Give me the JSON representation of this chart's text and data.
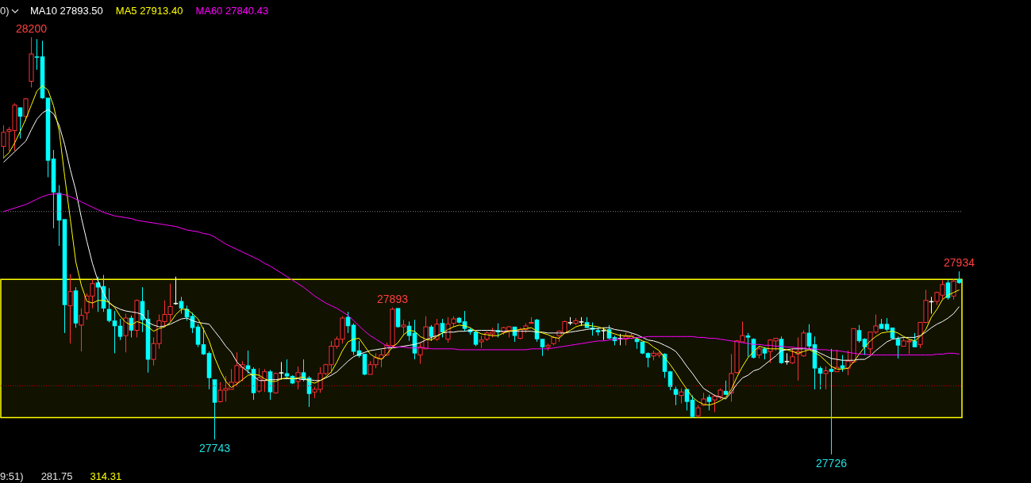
{
  "chart_data": {
    "type": "candlestick",
    "tick_labels": false,
    "legend": "top left",
    "marker": "none",
    "categories": [
      null,
      null,
      null,
      null,
      null,
      null,
      null,
      null,
      null,
      null,
      null,
      null,
      null,
      null,
      null,
      null,
      null,
      null,
      null,
      null,
      null,
      null,
      null,
      null,
      null,
      null,
      null,
      null,
      null,
      null,
      null,
      null,
      null,
      null,
      null,
      null,
      null,
      null,
      null,
      null,
      null,
      null,
      null,
      null,
      null,
      null,
      null,
      null,
      null,
      null,
      null,
      null,
      null,
      null,
      null,
      null,
      null,
      null,
      null,
      null,
      null,
      null,
      null,
      null,
      null,
      null,
      null,
      null,
      null,
      null,
      null,
      null,
      null,
      null,
      null,
      null,
      null,
      null,
      null,
      null,
      null,
      null,
      null,
      null,
      null,
      null,
      null,
      null,
      null,
      null,
      null,
      null,
      null,
      null,
      null,
      null,
      null,
      null,
      null,
      null,
      null,
      null,
      null,
      null,
      null,
      null,
      null,
      null,
      null,
      null,
      null,
      null,
      null,
      null,
      null,
      null,
      null,
      null,
      null,
      null,
      null,
      null,
      null,
      null,
      null,
      null,
      null,
      null,
      null,
      null,
      null,
      null,
      null,
      null,
      null,
      null,
      null,
      null,
      null,
      null,
      null,
      null,
      null,
      null,
      null,
      null,
      null,
      null,
      null,
      null,
      null,
      null,
      null,
      null,
      null,
      null,
      null,
      null,
      null,
      null,
      null,
      null,
      null,
      null,
      null,
      null,
      null,
      null,
      null,
      null,
      null,
      null,
      null
    ],
    "ohlc": [
      [
        28076,
        28100,
        28062,
        28092
      ],
      [
        28093,
        28098,
        28071,
        28095
      ],
      [
        28094,
        28125,
        28071,
        28123
      ],
      [
        28120,
        28120,
        28085,
        28110
      ],
      [
        28110,
        28131,
        28105,
        28130
      ],
      [
        28150,
        28200,
        28143,
        28181
      ],
      [
        28178,
        28198,
        28163,
        28177
      ],
      [
        28178,
        28196,
        28130,
        28131
      ],
      [
        28131,
        28131,
        28041,
        28060
      ],
      [
        28062,
        28072,
        27983,
        28024
      ],
      [
        28023,
        28032,
        27963,
        27992
      ],
      [
        27993,
        27993,
        27864,
        27896
      ],
      [
        27895,
        27931,
        27852,
        27911
      ],
      [
        27912,
        27916,
        27870,
        27875
      ],
      [
        27873,
        27892,
        27843,
        27884
      ],
      [
        27887,
        27909,
        27879,
        27906
      ],
      [
        27906,
        27925,
        27892,
        27920
      ],
      [
        27921,
        27928,
        27888,
        27916
      ],
      [
        27917,
        27930,
        27888,
        27892
      ],
      [
        27891,
        27915,
        27876,
        27878
      ],
      [
        27878,
        27889,
        27841,
        27872
      ],
      [
        27872,
        27880,
        27856,
        27860
      ],
      [
        27861,
        27886,
        27842,
        27881
      ],
      [
        27881,
        27884,
        27859,
        27867
      ],
      [
        27867,
        27902,
        27859,
        27901
      ],
      [
        27900,
        27916,
        27865,
        27879
      ],
      [
        27880,
        27890,
        27819,
        27834
      ],
      [
        27834,
        27859,
        27827,
        27852
      ],
      [
        27852,
        27885,
        27846,
        27878
      ],
      [
        27877,
        27901,
        27871,
        27885
      ],
      [
        27885,
        27920,
        27877,
        27894
      ],
      [
        27898,
        27928,
        27896,
        27898
      ],
      [
        27900,
        27905,
        27886,
        27892
      ],
      [
        27891,
        27895,
        27878,
        27882
      ],
      [
        27883,
        27887,
        27864,
        27870
      ],
      [
        27871,
        27874,
        27848,
        27851
      ],
      [
        27851,
        27870,
        27839,
        27840
      ],
      [
        27841,
        27843,
        27800,
        27813
      ],
      [
        27811,
        27811,
        27743,
        27785
      ],
      [
        27786,
        27808,
        27785,
        27799
      ],
      [
        27799,
        27815,
        27786,
        27801
      ],
      [
        27800,
        27823,
        27800,
        27808
      ],
      [
        27808,
        27842,
        27803,
        27827
      ],
      [
        27825,
        27832,
        27809,
        27828
      ],
      [
        27827,
        27844,
        27818,
        27823
      ],
      [
        27823,
        27825,
        27788,
        27796
      ],
      [
        27798,
        27824,
        27796,
        27813
      ],
      [
        27810,
        27823,
        27797,
        27820
      ],
      [
        27820,
        27822,
        27788,
        27797
      ],
      [
        27796,
        27819,
        27795,
        27818
      ],
      [
        27819,
        27831,
        27811,
        27819
      ],
      [
        27818,
        27834,
        27812,
        27815
      ],
      [
        27815,
        27816,
        27806,
        27807
      ],
      [
        27809,
        27826,
        27800,
        27819
      ],
      [
        27819,
        27834,
        27809,
        27811
      ],
      [
        27813,
        27815,
        27780,
        27795
      ],
      [
        27797,
        27803,
        27790,
        27800
      ],
      [
        27800,
        27825,
        27796,
        27818
      ],
      [
        27818,
        27829,
        27816,
        27828
      ],
      [
        27828,
        27855,
        27818,
        27849
      ],
      [
        27849,
        27860,
        27846,
        27857
      ],
      [
        27857,
        27883,
        27852,
        27881
      ],
      [
        27882,
        27888,
        27864,
        27872
      ],
      [
        27873,
        27875,
        27839,
        27843
      ],
      [
        27844,
        27855,
        27836,
        27838
      ],
      [
        27840,
        27840,
        27816,
        27817
      ],
      [
        27817,
        27832,
        27817,
        27828
      ],
      [
        27828,
        27841,
        27824,
        27836
      ],
      [
        27835,
        27845,
        27825,
        27839
      ],
      [
        27839,
        27853,
        27838,
        27850
      ],
      [
        27850,
        27893,
        27848,
        27891
      ],
      [
        27892,
        27892,
        27870,
        27871
      ],
      [
        27871,
        27879,
        27861,
        27873
      ],
      [
        27872,
        27877,
        27855,
        27861
      ],
      [
        27864,
        27879,
        27834,
        27841
      ],
      [
        27839,
        27853,
        27829,
        27848
      ],
      [
        27846,
        27883,
        27846,
        27871
      ],
      [
        27871,
        27873,
        27855,
        27860
      ],
      [
        27857,
        27880,
        27855,
        27874
      ],
      [
        27875,
        27880,
        27859,
        27865
      ],
      [
        27857,
        27882,
        27853,
        27874
      ],
      [
        27875,
        27883,
        27871,
        27880
      ],
      [
        27881,
        27882,
        27875,
        27876
      ],
      [
        27877,
        27889,
        27866,
        27869
      ],
      [
        27868,
        27870,
        27862,
        27865
      ],
      [
        27865,
        27866,
        27849,
        27851
      ],
      [
        27854,
        27861,
        27847,
        27856
      ],
      [
        27857,
        27866,
        27855,
        27864
      ],
      [
        27863,
        27870,
        27859,
        27865
      ],
      [
        27867,
        27875,
        27859,
        27865
      ],
      [
        27865,
        27871,
        27862,
        27870
      ],
      [
        27867,
        27872,
        27859,
        27871
      ],
      [
        27871,
        27871,
        27854,
        27861
      ],
      [
        27858,
        27870,
        27857,
        27868
      ],
      [
        27868,
        27875,
        27864,
        27872
      ],
      [
        27875,
        27882,
        27875,
        27876
      ],
      [
        27879,
        27880,
        27854,
        27857
      ],
      [
        27857,
        27857,
        27838,
        27848
      ],
      [
        27848,
        27852,
        27844,
        27850
      ],
      [
        27852,
        27861,
        27850,
        27859
      ],
      [
        27861,
        27867,
        27854,
        27866
      ],
      [
        27864,
        27878,
        27864,
        27877
      ],
      [
        27876,
        27882,
        27873,
        27876
      ],
      [
        27875,
        27881,
        27873,
        27878
      ],
      [
        27877,
        27882,
        27872,
        27877
      ],
      [
        27876,
        27882,
        27870,
        27870
      ],
      [
        27870,
        27876,
        27861,
        27868
      ],
      [
        27867,
        27870,
        27861,
        27865
      ],
      [
        27867,
        27870,
        27856,
        27867
      ],
      [
        27868,
        27873,
        27857,
        27858
      ],
      [
        27859,
        27861,
        27850,
        27855
      ],
      [
        27858,
        27863,
        27850,
        27858
      ],
      [
        27857,
        27865,
        27850,
        27860
      ],
      [
        27858,
        27864,
        27857,
        27861
      ],
      [
        27857,
        27859,
        27846,
        27854
      ],
      [
        27854,
        27854,
        27840,
        27841
      ],
      [
        27841,
        27842,
        27825,
        27836
      ],
      [
        27838,
        27844,
        27833,
        27841
      ],
      [
        27839,
        27843,
        27836,
        27841
      ],
      [
        27840,
        27841,
        27813,
        27820
      ],
      [
        27820,
        27821,
        27799,
        27803
      ],
      [
        27800,
        27803,
        27782,
        27794
      ],
      [
        27793,
        27801,
        27784,
        27797
      ],
      [
        27800,
        27800,
        27776,
        27786
      ],
      [
        27788,
        27793,
        27768,
        27769
      ],
      [
        27770,
        27782,
        27768,
        27779
      ],
      [
        27782,
        27796,
        27781,
        27789
      ],
      [
        27791,
        27794,
        27776,
        27786
      ],
      [
        27788,
        27794,
        27774,
        27792
      ],
      [
        27792,
        27801,
        27789,
        27799
      ],
      [
        27798,
        27810,
        27794,
        27794
      ],
      [
        27796,
        27840,
        27786,
        27818
      ],
      [
        27819,
        27856,
        27818,
        27855
      ],
      [
        27854,
        27877,
        27854,
        27861
      ],
      [
        27861,
        27864,
        27837,
        27859
      ],
      [
        27857,
        27858,
        27835,
        27836
      ],
      [
        27839,
        27849,
        27835,
        27846
      ],
      [
        27846,
        27848,
        27834,
        27841
      ],
      [
        27843,
        27857,
        27830,
        27856
      ],
      [
        27855,
        27858,
        27844,
        27858
      ],
      [
        27857,
        27860,
        27829,
        27830
      ],
      [
        27832,
        27841,
        27828,
        27832
      ],
      [
        27830,
        27847,
        27829,
        27837
      ],
      [
        27840,
        27859,
        27810,
        27843
      ],
      [
        27838,
        27867,
        27837,
        27864
      ],
      [
        27864,
        27874,
        27846,
        27849
      ],
      [
        27851,
        27860,
        27800,
        27824
      ],
      [
        27824,
        27826,
        27800,
        27818
      ],
      [
        27818,
        27826,
        27800,
        27821
      ],
      [
        27823,
        27846,
        27726,
        27820
      ],
      [
        27820,
        27845,
        27820,
        27825
      ],
      [
        27827,
        27839,
        27820,
        27824
      ],
      [
        27824,
        27844,
        27816,
        27832
      ],
      [
        27831,
        27869,
        27830,
        27869
      ],
      [
        27867,
        27873,
        27853,
        27855
      ],
      [
        27857,
        27858,
        27839,
        27848
      ],
      [
        27846,
        27865,
        27839,
        27865
      ],
      [
        27865,
        27885,
        27863,
        27872
      ],
      [
        27874,
        27880,
        27869,
        27869
      ],
      [
        27874,
        27881,
        27866,
        27868
      ],
      [
        27870,
        27870,
        27857,
        27858
      ],
      [
        27857,
        27860,
        27835,
        27850
      ],
      [
        27849,
        27859,
        27849,
        27855
      ],
      [
        27854,
        27857,
        27840,
        27855
      ],
      [
        27855,
        27864,
        27848,
        27848
      ],
      [
        27851,
        27876,
        27847,
        27876
      ],
      [
        27876,
        27913,
        27875,
        27901
      ],
      [
        27900,
        27905,
        27886,
        27900
      ],
      [
        27900,
        27911,
        27896,
        27910
      ],
      [
        27907,
        27924,
        27902,
        27919
      ],
      [
        27921,
        27924,
        27902,
        27904
      ],
      [
        27906,
        27925,
        27902,
        27923
      ],
      [
        27925,
        27934,
        27920,
        27921
      ]
    ],
    "colors": [
      "#ff3232",
      "#ff3232",
      "#ff3232",
      "#00ffff",
      "#ff3232",
      "#ff3232",
      "#00ffff",
      "#00ffff",
      "#00ffff",
      "#00ffff",
      "#00ffff",
      "#00ffff",
      "#ff3232",
      "#00ffff",
      "#ff3232",
      "#ff3232",
      "#ff3232",
      "#00ffff",
      "#00ffff",
      "#00ffff",
      "#00ffff",
      "#00ffff",
      "#ff3232",
      "#00ffff",
      "#ff3232",
      "#00ffff",
      "#00ffff",
      "#ff3232",
      "#ff3232",
      "#ff3232",
      "#ff3232",
      "#ffffff",
      "#00ffff",
      "#00ffff",
      "#00ffff",
      "#00ffff",
      "#00ffff",
      "#00ffff",
      "#00ffff",
      "#ff3232",
      "#ff3232",
      "#ff3232",
      "#ff3232",
      "#ff3232",
      "#00ffff",
      "#00ffff",
      "#ff3232",
      "#ff3232",
      "#00ffff",
      "#ff3232",
      "#ffffff",
      "#00ffff",
      "#00ffff",
      "#ff3232",
      "#00ffff",
      "#00ffff",
      "#ff3232",
      "#ff3232",
      "#ff3232",
      "#ff3232",
      "#ff3232",
      "#ff3232",
      "#00ffff",
      "#00ffff",
      "#00ffff",
      "#00ffff",
      "#ff3232",
      "#ff3232",
      "#ff3232",
      "#ff3232",
      "#ff3232",
      "#00ffff",
      "#ff3232",
      "#00ffff",
      "#00ffff",
      "#ff3232",
      "#ff3232",
      "#00ffff",
      "#ff3232",
      "#00ffff",
      "#ff3232",
      "#ff3232",
      "#00ffff",
      "#00ffff",
      "#00ffff",
      "#00ffff",
      "#ff3232",
      "#ff3232",
      "#ff3232",
      "#00ffff",
      "#ff3232",
      "#ff3232",
      "#00ffff",
      "#ff3232",
      "#ff3232",
      "#ff3232",
      "#00ffff",
      "#00ffff",
      "#ff3232",
      "#ff3232",
      "#ff3232",
      "#ff3232",
      "#ffffff",
      "#ff3232",
      "#ffffff",
      "#00ffff",
      "#00ffff",
      "#00ffff",
      "#ffffff",
      "#00ffff",
      "#00ffff",
      "#ffffff",
      "#ff3232",
      "#ff3232",
      "#00ffff",
      "#00ffff",
      "#00ffff",
      "#ff3232",
      "#ff3232",
      "#00ffff",
      "#00ffff",
      "#00ffff",
      "#ff3232",
      "#00ffff",
      "#00ffff",
      "#ff3232",
      "#ff3232",
      "#00ffff",
      "#ff3232",
      "#ff3232",
      "#00ffff",
      "#ff3232",
      "#ff3232",
      "#ff3232",
      "#00ffff",
      "#00ffff",
      "#ff3232",
      "#00ffff",
      "#ff3232",
      "#ff3232",
      "#00ffff",
      "#ffffff",
      "#ff3232",
      "#ff3232",
      "#ff3232",
      "#00ffff",
      "#00ffff",
      "#00ffff",
      "#ff3232",
      "#00ffff",
      "#ff3232",
      "#00ffff",
      "#ff3232",
      "#ff3232",
      "#00ffff",
      "#00ffff",
      "#ff3232",
      "#ff3232",
      "#00ffff",
      "#00ffff",
      "#00ffff",
      "#00ffff",
      "#ff3232",
      "#ff3232",
      "#00ffff",
      "#ff3232",
      "#ff3232",
      "#ffffff",
      "#ff3232",
      "#ff3232",
      "#00ffff",
      "#ff3232",
      "#00ffff"
    ],
    "series": [
      {
        "name": "MA10 27893.50",
        "type": "line",
        "color": "#ffffff",
        "values": [
          28058,
          28064,
          28070,
          28076,
          28082,
          28095,
          28107,
          28114,
          28118,
          28113,
          28100,
          28078,
          28050,
          28026,
          27995,
          27968,
          27943,
          27923,
          27909,
          27898,
          27894,
          27891,
          27889,
          27888,
          27887,
          27885,
          27876,
          27873,
          27871,
          27872,
          27874,
          27877,
          27880,
          27881,
          27878,
          27876,
          27875,
          27874,
          27866,
          27858,
          27849,
          27842,
          27831,
          27825,
          27820,
          27815,
          27810,
          27810,
          27811,
          27811,
          27812,
          27812,
          27812,
          27812,
          27811,
          27811,
          27810,
          27810,
          27813,
          27816,
          27820,
          27826,
          27832,
          27837,
          27840,
          27842,
          27844,
          27845,
          27846,
          27847,
          27847,
          27848,
          27849,
          27850,
          27851,
          27853,
          27856,
          27859,
          27861,
          27864,
          27865,
          27865,
          27866,
          27866,
          27867,
          27867,
          27867,
          27867,
          27867,
          27866,
          27866,
          27866,
          27866,
          27866,
          27866,
          27866,
          27865,
          27865,
          27864,
          27864,
          27864,
          27864,
          27865,
          27866,
          27867,
          27868,
          27869,
          27869,
          27870,
          27870,
          27868,
          27867,
          27866,
          27864,
          27862,
          27859,
          27856,
          27855,
          27853,
          27850,
          27847,
          27843,
          27835,
          27826,
          27818,
          27809,
          27801,
          27797,
          27793,
          27791,
          27789,
          27797,
          27806,
          27813,
          27816,
          27821,
          27823,
          27828,
          27833,
          27838,
          27844,
          27845,
          27846,
          27846,
          27846,
          27846,
          27844,
          27841,
          27838,
          27835,
          27834,
          27833,
          27833,
          27833,
          27834,
          27834,
          27838,
          27844,
          27849,
          27854,
          27857,
          27858,
          27859,
          27859,
          27859,
          27861,
          27865,
          27870,
          27874,
          27877,
          27881,
          27886,
          27894
        ]
      },
      {
        "name": "MA5 27913.40",
        "type": "line",
        "color": "#ffff00",
        "values": [
          28063,
          28069,
          28080,
          28093,
          28107,
          28123,
          28139,
          28145,
          28140,
          28122,
          28094,
          28042,
          27994,
          27945,
          27918,
          27900,
          27898,
          27901,
          27901,
          27899,
          27893,
          27883,
          27876,
          27873,
          27877,
          27875,
          27871,
          27866,
          27869,
          27871,
          27876,
          27885,
          27891,
          27891,
          27886,
          27880,
          27868,
          27855,
          27836,
          27821,
          27809,
          27802,
          27806,
          27811,
          27816,
          27817,
          27816,
          27812,
          27809,
          27809,
          27812,
          27813,
          27812,
          27813,
          27814,
          27809,
          27807,
          27810,
          27814,
          27820,
          27831,
          27844,
          27854,
          27857,
          27858,
          27849,
          27840,
          27836,
          27834,
          27840,
          27848,
          27853,
          27862,
          27867,
          27866,
          27860,
          27857,
          27856,
          27860,
          27864,
          27868,
          27871,
          27873,
          27872,
          27870,
          27866,
          27863,
          27862,
          27861,
          27861,
          27864,
          27866,
          27867,
          27868,
          27869,
          27870,
          27866,
          27864,
          27862,
          27859,
          27858,
          27864,
          27867,
          27871,
          27873,
          27873,
          27872,
          27871,
          27869,
          27865,
          27863,
          27861,
          27861,
          27860,
          27858,
          27855,
          27853,
          27848,
          27844,
          27836,
          27828,
          27819,
          27809,
          27800,
          27791,
          27786,
          27783,
          27782,
          27784,
          27787,
          27791,
          27800,
          27814,
          27826,
          27836,
          27843,
          27849,
          27847,
          27846,
          27846,
          27846,
          27845,
          27843,
          27841,
          27843,
          27845,
          27842,
          27838,
          27832,
          27826,
          27823,
          27823,
          27824,
          27831,
          27840,
          27848,
          27855,
          27860,
          27864,
          27865,
          27866,
          27864,
          27860,
          27857,
          27855,
          27860,
          27868,
          27882,
          27891,
          27902,
          27907,
          27910,
          27913
        ]
      },
      {
        "name": "MA60 27840.43",
        "type": "line",
        "color": "#ff00ff",
        "values": [
          28002,
          28004,
          28006,
          28008,
          28010,
          28013,
          28016,
          28019,
          28021,
          28022,
          28022,
          28021,
          28019,
          28016,
          28013,
          28010,
          28007,
          28004,
          28001,
          27999,
          27997,
          27996,
          27995,
          27994,
          27992,
          27991,
          27990,
          27989,
          27988,
          27987,
          27986,
          27985,
          27983,
          27981,
          27980,
          27979,
          27977,
          27976,
          27973,
          27969,
          27965,
          27962,
          27959,
          27956,
          27953,
          27950,
          27947,
          27943,
          27940,
          27936,
          27932,
          27928,
          27924,
          27920,
          27916,
          27911,
          27906,
          27902,
          27898,
          27895,
          27892,
          27888,
          27884,
          27878,
          27872,
          27866,
          27861,
          27857,
          27853,
          27849,
          27848,
          27848,
          27848,
          27847,
          27847,
          27847,
          27847,
          27846,
          27846,
          27846,
          27846,
          27846,
          27845,
          27845,
          27845,
          27845,
          27845,
          27845,
          27845,
          27845,
          27845,
          27845,
          27845,
          27845,
          27845,
          27846,
          27846,
          27846,
          27846,
          27847,
          27848,
          27849,
          27850,
          27851,
          27852,
          27853,
          27854,
          27855,
          27855,
          27856,
          27857,
          27857,
          27858,
          27858,
          27859,
          27859,
          27860,
          27860,
          27860,
          27860,
          27860,
          27860,
          27860,
          27860,
          27860,
          27859,
          27859,
          27858,
          27858,
          27857,
          27856,
          27855,
          27854,
          27853,
          27852,
          27851,
          27851,
          27850,
          27850,
          27849,
          27849,
          27848,
          27848,
          27847,
          27847,
          27846,
          27846,
          27845,
          27845,
          27844,
          27844,
          27843,
          27842,
          27841,
          27840,
          27840,
          27839,
          27839,
          27839,
          27839,
          27839,
          27839,
          27839,
          27839,
          27839,
          27839,
          27839,
          27839,
          27840,
          27840,
          27841,
          27841,
          27840
        ]
      }
    ],
    "ref_lines": [
      {
        "axis": "y",
        "value": 28002,
        "color": "#808080",
        "line_style": "dotted"
      },
      {
        "axis": "y",
        "value": 27804,
        "color": "#c00000",
        "line_style": "dotted"
      }
    ],
    "bands": [
      {
        "axis": "y",
        "from": 27768,
        "to": 27925,
        "color": "#ffff00"
      }
    ],
    "annotations": [
      "0)",
      {
        "text": "28200",
        "y": 28200
      },
      {
        "text": "27743",
        "y": 27743
      },
      {
        "text": "27893",
        "y": 27893
      },
      {
        "text": "27934",
        "y": 27934
      },
      {
        "text": "27726",
        "y": 27726
      },
      "9:51)",
      "281.75",
      "314.31"
    ]
  }
}
